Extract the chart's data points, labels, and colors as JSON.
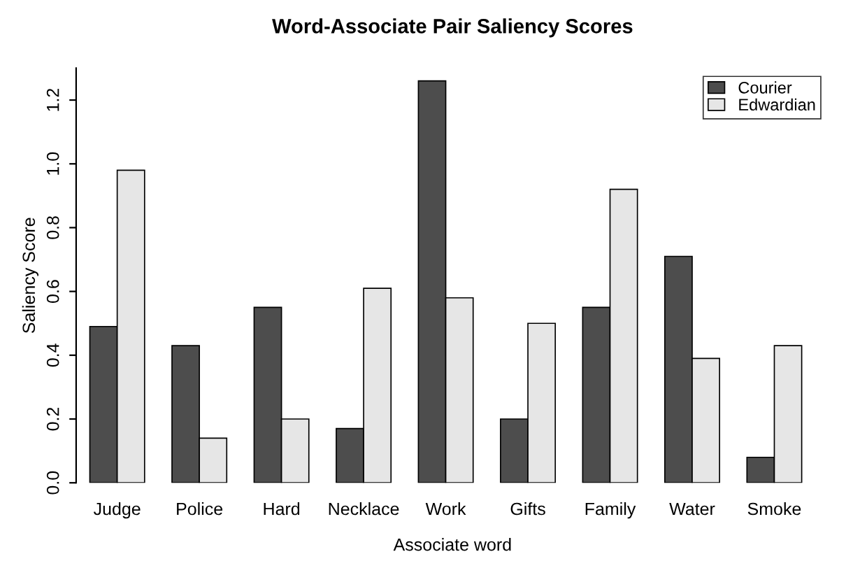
{
  "chart_data": {
    "type": "bar",
    "title": "Word-Associate Pair Saliency Scores",
    "xlabel": "Associate word",
    "ylabel": "Saliency Score",
    "categories": [
      "Judge",
      "Police",
      "Hard",
      "Necklace",
      "Work",
      "Gifts",
      "Family",
      "Water",
      "Smoke"
    ],
    "series": [
      {
        "name": "Courier",
        "color": "#4d4d4d",
        "values": [
          0.49,
          0.43,
          0.55,
          0.17,
          1.26,
          0.2,
          0.55,
          0.71,
          0.08
        ]
      },
      {
        "name": "Edwardian",
        "color": "#e6e6e6",
        "values": [
          0.98,
          0.14,
          0.2,
          0.61,
          0.58,
          0.5,
          0.92,
          0.39,
          0.43
        ]
      }
    ],
    "ylim": [
      0,
      1.3
    ],
    "yticks": [
      {
        "value": 0,
        "label": "0.0"
      },
      0.2,
      0.4,
      0.6,
      0.8,
      {
        "value": 1,
        "label": "1.0"
      },
      1.2
    ],
    "grid": false,
    "legend": "top right"
  }
}
